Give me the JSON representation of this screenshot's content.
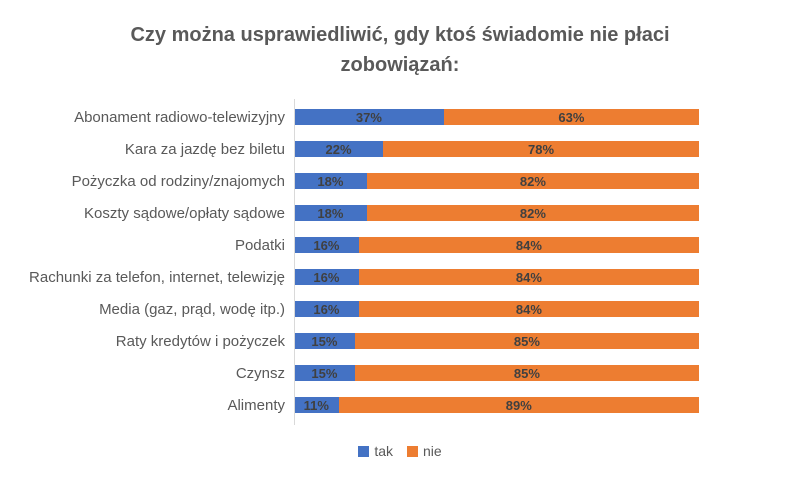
{
  "chart_data": {
    "type": "bar",
    "orientation": "horizontal",
    "stacked": true,
    "title": "Czy można usprawiedliwić, gdy ktoś świadomie nie płaci zobowiązań:",
    "categories": [
      "Abonament radiowo-telewizyjny",
      "Kara za jazdę bez biletu",
      "Pożyczka od rodziny/znajomych",
      "Koszty sądowe/opłaty sądowe",
      "Podatki",
      "Rachunki za telefon, internet, telewizję",
      "Media (gaz, prąd, wodę itp.)",
      "Raty kredytów i pożyczek",
      "Czynsz",
      "Alimenty"
    ],
    "series": [
      {
        "name": "tak",
        "color": "#4472C4",
        "values": [
          37,
          22,
          18,
          18,
          16,
          16,
          16,
          15,
          15,
          11
        ]
      },
      {
        "name": "nie",
        "color": "#ED7D31",
        "values": [
          63,
          78,
          82,
          82,
          84,
          84,
          84,
          85,
          85,
          89
        ]
      }
    ],
    "value_suffix": "%",
    "xlim": [
      0,
      100
    ],
    "grid": false,
    "legend_position": "bottom",
    "colors": {
      "title_color": "#595959",
      "category_color": "#595959",
      "data_label_color": "#404040",
      "axis_line_color": "#D9D9D9",
      "legend_color": "#595959"
    }
  }
}
